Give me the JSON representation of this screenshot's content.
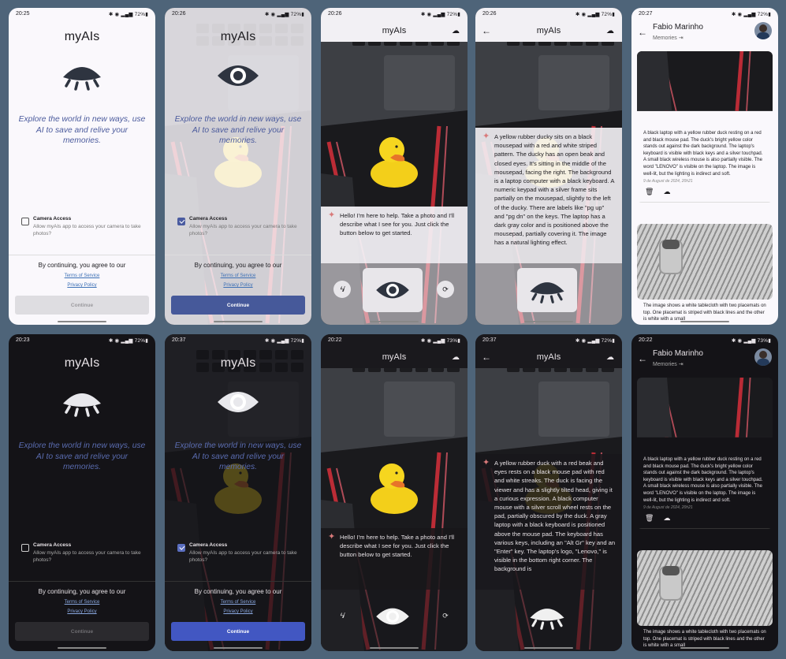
{
  "app_title": "myAIs",
  "tagline": "Explore the world in new ways, use AI to save and relive your memories.",
  "camera_access": {
    "title": "Camera Access",
    "desc": "Allow myAIs app to access your camera to take photos?"
  },
  "agree_text": "By continuing, you agree to our",
  "terms": "Terms of Service",
  "privacy": "Privacy Policy",
  "continue": "Continue",
  "greeting": "Hello! I'm here to help. Take a photo and I'll describe what I see for you. Just click the button below to get started.",
  "desc_light": "A yellow rubber ducky sits on a black mousepad with a red and white striped pattern. The ducky has an open beak and closed eyes. It's sitting in the middle of the mousepad, facing the right. The background is a laptop computer with a black keyboard. A numeric keypad with a silver frame sits partially on the mousepad, slightly to the left of the ducky. There are labels like \"pg up\" and \"pg dn\" on the keys. The laptop has a dark gray color and is positioned above the mousepad, partially covering it. The image has a natural lighting effect.",
  "desc_dark": "A yellow rubber duck with a red beak and eyes rests on a black mouse pad with red and white streaks. The duck is facing the viewer and has a slightly tilted head, giving it a curious expression. A black computer mouse with a silver scroll wheel rests on the pad, partially obscured by the duck. A gray laptop with a black keyboard is positioned above the mouse pad. The keyboard has various keys, including an \"Alt Gr\" key and an \"Enter\" key.  The laptop's logo, \"Lenovo,\" is visible in the bottom right corner. The background is",
  "memories": {
    "user": "Fabio Marinho",
    "subtitle": "Memories",
    "item1": "A black laptop with a yellow rubber duck resting on a red and black mouse pad. The duck's bright yellow color stands out against the dark background. The laptop's keyboard is visible with black keys and a silver touchpad. A small black wireless mouse is also partially visible. The word \"LENOVO\" is visible on the laptop. The image is well-lit, but the lighting is indirect and soft.",
    "date1": "9 de August de 2024, 20h21",
    "item2": "The image shows a white tablecloth with two placemats on top. One placemat is striped with black lines and the other is white with a small"
  },
  "statusbars": {
    "p1": {
      "time": "20:25",
      "battery": "72%"
    },
    "p2": {
      "time": "20:26",
      "battery": "72%"
    },
    "p3": {
      "time": "20:26",
      "battery": "72%"
    },
    "p4": {
      "time": "20:26",
      "battery": "72%"
    },
    "p5": {
      "time": "20:27",
      "battery": "72%"
    },
    "p6": {
      "time": "20:23",
      "battery": "72%"
    },
    "p7": {
      "time": "20:37",
      "battery": "72%"
    },
    "p8": {
      "time": "20:22",
      "battery": "73%"
    },
    "p9": {
      "time": "20:37",
      "battery": "72%"
    },
    "p10": {
      "time": "20:22",
      "battery": "73%"
    }
  },
  "icons": [
    "eye-closed-icon",
    "eye-open-icon",
    "cloud-icon",
    "back-arrow-icon",
    "sparkle-icon",
    "flash-off-icon",
    "switch-camera-icon",
    "delete-icon",
    "cloud-upload-icon",
    "logout-icon",
    "avatar"
  ],
  "colors": {
    "accent": "#4a5ba0",
    "tagline": "#4a5a9c",
    "link": "#3b6fb5",
    "sparkle": "#d97a7a"
  }
}
